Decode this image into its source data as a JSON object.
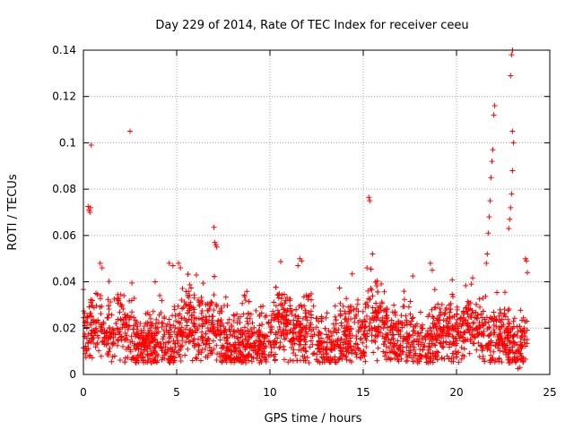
{
  "chart_data": {
    "type": "scatter",
    "title": "Day 229 of 2014, Rate Of TEC Index for receiver ceeu",
    "xlabel": "GPS time / hours",
    "ylabel": "ROTI / TECUs",
    "xlim": [
      0,
      25
    ],
    "ylim": [
      0,
      0.14
    ],
    "x_ticks": [
      0,
      5,
      10,
      15,
      20,
      25
    ],
    "x_tick_labels": [
      "0",
      "5",
      "10",
      "15",
      "20",
      "25"
    ],
    "y_ticks": [
      0,
      0.02,
      0.04,
      0.06,
      0.08,
      0.1,
      0.12,
      0.14
    ],
    "y_tick_labels": [
      "0",
      "0.02",
      "0.04",
      "0.06",
      "0.08",
      "0.1",
      "0.12",
      "0.14"
    ],
    "grid": true,
    "marker": "+",
    "colors": {
      "marker": "#ff0000",
      "grid": "#a0a0a0",
      "axis": "#000000"
    },
    "series": [
      {
        "name": "ROTI",
        "x": [
          0.25,
          0.3,
          0.35,
          0.38,
          0.42,
          2.5,
          2.6,
          5.1,
          5.2,
          7.0,
          7.05,
          7.1,
          7.15,
          15.3,
          15.35,
          21.6,
          21.65,
          21.7,
          21.75,
          21.8,
          21.85,
          21.9,
          21.95,
          22.0,
          22.05,
          22.8,
          22.85,
          22.9,
          22.95,
          23.0,
          23.05,
          22.95,
          23.0,
          22.9,
          23.0,
          4.6,
          4.8,
          11.6,
          11.7,
          15.5,
          15.2,
          18.6,
          18.7,
          20.8,
          23.7,
          23.75,
          23.8,
          0.9,
          1.0,
          11.5,
          23.3,
          23.4
        ],
        "y": [
          0.0725,
          0.071,
          0.07,
          0.072,
          0.099,
          0.105,
          0.0395,
          0.048,
          0.046,
          0.0635,
          0.057,
          0.056,
          0.055,
          0.0765,
          0.075,
          0.048,
          0.052,
          0.061,
          0.068,
          0.075,
          0.085,
          0.092,
          0.097,
          0.112,
          0.116,
          0.063,
          0.067,
          0.072,
          0.078,
          0.088,
          0.1,
          0.138,
          0.14,
          0.129,
          0.105,
          0.048,
          0.047,
          0.05,
          0.049,
          0.052,
          0.046,
          0.048,
          0.045,
          0.039,
          0.05,
          0.049,
          0.044,
          0.048,
          0.046,
          0.047,
          0.0025,
          0.003
        ],
        "dense_band": {
          "x_range": [
            0,
            23.8
          ],
          "typical_min": 0.005,
          "typical_max": 0.035,
          "mean": 0.017
        }
      }
    ]
  }
}
